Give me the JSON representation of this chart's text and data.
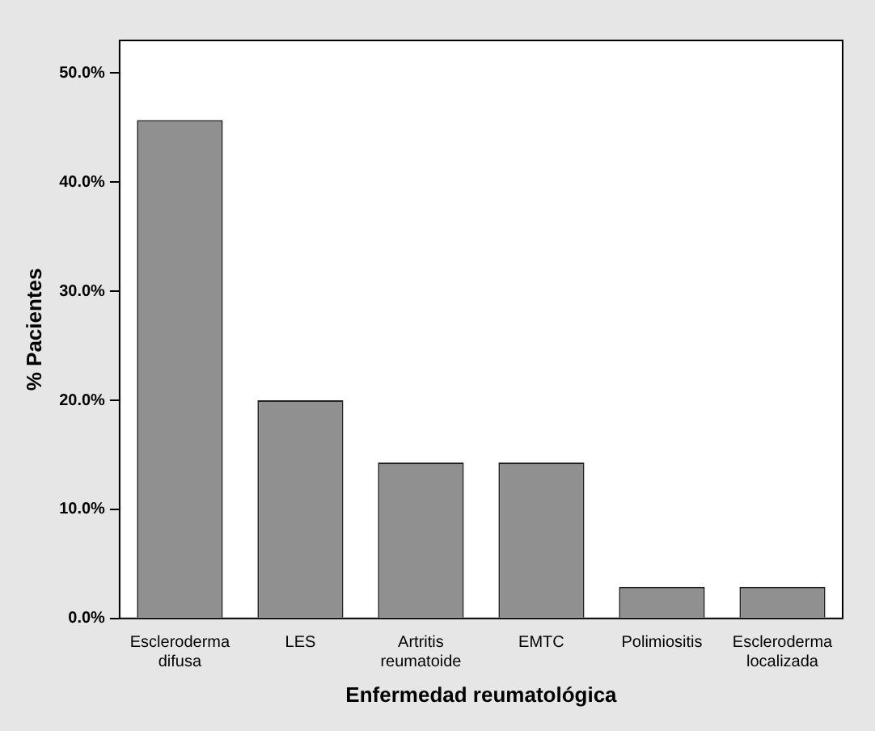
{
  "chart_data": {
    "type": "bar",
    "xlabel": "Enfermedad reumatológica",
    "ylabel": "% Pacientes",
    "categories": [
      "Escleroderma difusa",
      "LES",
      "Artritis reumatoide",
      "EMTC",
      "Polimiositis",
      "Escleroderma localizada"
    ],
    "values": [
      45.7,
      20.0,
      14.3,
      14.3,
      2.9,
      2.9
    ],
    "color": "#909090",
    "ylim": [
      0,
      53
    ],
    "yticks": [
      {
        "value": 0,
        "label": "0.0%"
      },
      {
        "value": 10,
        "label": "10.0%"
      },
      {
        "value": 20,
        "label": "20.0%"
      },
      {
        "value": 30,
        "label": "30.0%"
      },
      {
        "value": 40,
        "label": "40.0%"
      },
      {
        "value": 50,
        "label": "50.0%"
      }
    ],
    "grid": false
  }
}
